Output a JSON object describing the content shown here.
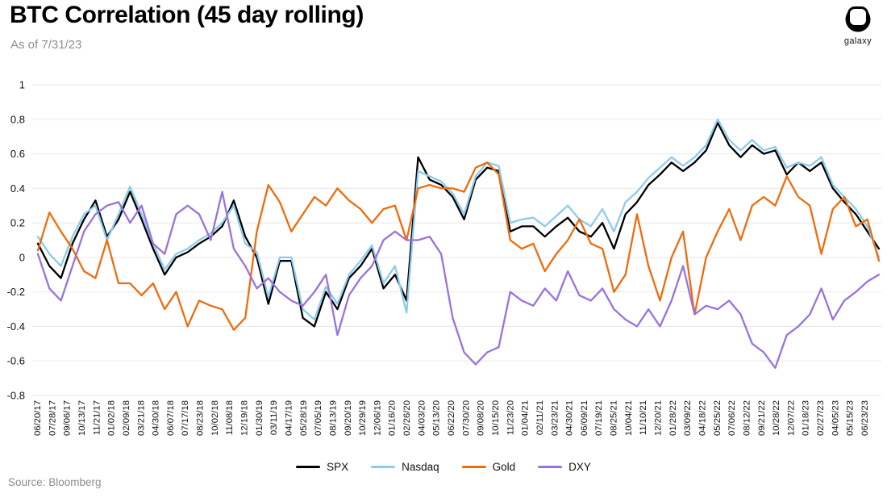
{
  "header": {
    "title": "BTC Correlation (45 day rolling)",
    "subtitle": "As of 7/31/23"
  },
  "branding": {
    "logo_text": "galaxy"
  },
  "footer": {
    "source": "Source: Bloomberg"
  },
  "chart_data": {
    "type": "line",
    "title": "BTC Correlation (45 day rolling)",
    "as_of": "7/31/23",
    "xlabel": "",
    "ylabel": "",
    "ylim": [
      -0.8,
      1
    ],
    "yticks": [
      1,
      0.8,
      0.6,
      0.4,
      0.2,
      0,
      -0.2,
      -0.4,
      -0.6,
      -0.8
    ],
    "ytick_labels": [
      "1",
      "0.8",
      "0.6",
      "0.4",
      "0.2",
      "0",
      "-0.2",
      "-0.4",
      "-0.6",
      "-0.8"
    ],
    "grid": "horizontal",
    "legend_position": "bottom",
    "grid_color": "#e7e7e7",
    "x_tick_labels": [
      "06/20/17",
      "07/28/17",
      "09/06/17",
      "10/13/17",
      "11/21/17",
      "01/02/18",
      "02/09/18",
      "03/21/18",
      "04/30/18",
      "06/07/18",
      "07/17/18",
      "08/23/18",
      "10/02/18",
      "11/08/18",
      "12/19/18",
      "01/30/19",
      "03/11/19",
      "04/17/19",
      "05/28/19",
      "07/05/19",
      "08/13/19",
      "09/20/19",
      "10/29/19",
      "12/06/19",
      "01/16/20",
      "02/26/20",
      "04/03/20",
      "05/13/20",
      "06/22/20",
      "07/30/20",
      "09/08/20",
      "10/15/20",
      "11/23/20",
      "01/04/21",
      "02/11/21",
      "03/23/21",
      "04/30/21",
      "06/09/21",
      "07/19/21",
      "08/25/21",
      "10/04/21",
      "11/10/21",
      "12/20/21",
      "01/28/22",
      "03/09/22",
      "04/18/22",
      "05/25/22",
      "07/06/22",
      "08/12/22",
      "09/21/22",
      "10/28/22",
      "12/07/22",
      "01/18/23",
      "02/27/23",
      "04/05/23",
      "05/15/23",
      "06/23/23"
    ],
    "x_sample_months": [
      "2017-06",
      "2017-07",
      "2017-08",
      "2017-09",
      "2017-10",
      "2017-11",
      "2017-12",
      "2018-01",
      "2018-02",
      "2018-03",
      "2018-04",
      "2018-05",
      "2018-06",
      "2018-07",
      "2018-08",
      "2018-09",
      "2018-10",
      "2018-11",
      "2018-12",
      "2019-01",
      "2019-02",
      "2019-03",
      "2019-04",
      "2019-05",
      "2019-06",
      "2019-07",
      "2019-08",
      "2019-09",
      "2019-10",
      "2019-11",
      "2019-12",
      "2020-01",
      "2020-02",
      "2020-03",
      "2020-04",
      "2020-05",
      "2020-06",
      "2020-07",
      "2020-08",
      "2020-09",
      "2020-10",
      "2020-11",
      "2020-12",
      "2021-01",
      "2021-02",
      "2021-03",
      "2021-04",
      "2021-05",
      "2021-06",
      "2021-07",
      "2021-08",
      "2021-09",
      "2021-10",
      "2021-11",
      "2021-12",
      "2022-01",
      "2022-02",
      "2022-03",
      "2022-04",
      "2022-05",
      "2022-06",
      "2022-07",
      "2022-08",
      "2022-09",
      "2022-10",
      "2022-11",
      "2022-12",
      "2023-01",
      "2023-02",
      "2023-03",
      "2023-04",
      "2023-05",
      "2023-06",
      "2023-07"
    ],
    "series": [
      {
        "name": "SPX",
        "color": "#000000",
        "values": [
          0.08,
          -0.05,
          -0.12,
          0.08,
          0.22,
          0.33,
          0.12,
          0.22,
          0.38,
          0.22,
          0.05,
          -0.1,
          0.0,
          0.03,
          0.08,
          0.12,
          0.18,
          0.33,
          0.12,
          0.0,
          -0.27,
          -0.02,
          -0.02,
          -0.35,
          -0.4,
          -0.2,
          -0.3,
          -0.12,
          -0.05,
          0.05,
          -0.18,
          -0.1,
          -0.25,
          0.58,
          0.45,
          0.42,
          0.35,
          0.22,
          0.45,
          0.52,
          0.5,
          0.15,
          0.18,
          0.18,
          0.12,
          0.18,
          0.23,
          0.15,
          0.12,
          0.2,
          0.05,
          0.25,
          0.32,
          0.42,
          0.48,
          0.55,
          0.5,
          0.55,
          0.62,
          0.78,
          0.65,
          0.58,
          0.65,
          0.6,
          0.62,
          0.48,
          0.55,
          0.5,
          0.55,
          0.4,
          0.32,
          0.25,
          0.15,
          0.05
        ]
      },
      {
        "name": "Nasdaq",
        "color": "#8dcbec",
        "values": [
          0.12,
          0.02,
          -0.05,
          0.12,
          0.25,
          0.3,
          0.1,
          0.25,
          0.41,
          0.25,
          0.08,
          -0.07,
          0.02,
          0.05,
          0.1,
          0.14,
          0.2,
          0.3,
          0.08,
          0.03,
          -0.23,
          0.0,
          0.0,
          -0.3,
          -0.36,
          -0.17,
          -0.27,
          -0.1,
          -0.02,
          0.07,
          -0.15,
          -0.05,
          -0.32,
          0.5,
          0.47,
          0.44,
          0.37,
          0.25,
          0.47,
          0.55,
          0.53,
          0.2,
          0.22,
          0.23,
          0.18,
          0.24,
          0.3,
          0.22,
          0.18,
          0.28,
          0.15,
          0.32,
          0.38,
          0.46,
          0.52,
          0.58,
          0.53,
          0.58,
          0.65,
          0.8,
          0.68,
          0.62,
          0.68,
          0.62,
          0.64,
          0.52,
          0.55,
          0.53,
          0.58,
          0.42,
          0.35,
          0.28,
          0.18,
          0.0
        ]
      },
      {
        "name": "Gold",
        "color": "#ed6c0d",
        "values": [
          0.04,
          0.26,
          0.15,
          0.05,
          -0.08,
          -0.12,
          0.1,
          -0.15,
          -0.15,
          -0.22,
          -0.15,
          -0.3,
          -0.2,
          -0.4,
          -0.25,
          -0.28,
          -0.3,
          -0.42,
          -0.35,
          0.15,
          0.42,
          0.32,
          0.15,
          0.25,
          0.35,
          0.3,
          0.4,
          0.33,
          0.28,
          0.2,
          0.28,
          0.3,
          0.1,
          0.4,
          0.42,
          0.4,
          0.4,
          0.38,
          0.52,
          0.55,
          0.48,
          0.1,
          0.05,
          0.08,
          -0.08,
          0.02,
          0.1,
          0.22,
          0.08,
          0.05,
          -0.2,
          -0.1,
          0.25,
          -0.05,
          -0.25,
          0.0,
          0.15,
          -0.33,
          0.0,
          0.15,
          0.28,
          0.1,
          0.3,
          0.35,
          0.3,
          0.47,
          0.35,
          0.3,
          0.02,
          0.28,
          0.35,
          0.18,
          0.22,
          -0.02
        ]
      },
      {
        "name": "DXY",
        "color": "#9a72dc",
        "values": [
          0.02,
          -0.18,
          -0.25,
          -0.05,
          0.15,
          0.25,
          0.3,
          0.32,
          0.2,
          0.3,
          0.08,
          0.02,
          0.25,
          0.3,
          0.25,
          0.1,
          0.38,
          0.05,
          -0.05,
          -0.18,
          -0.12,
          -0.2,
          -0.25,
          -0.28,
          -0.2,
          -0.1,
          -0.45,
          -0.22,
          -0.12,
          -0.05,
          0.1,
          0.15,
          0.1,
          0.1,
          0.12,
          0.02,
          -0.35,
          -0.55,
          -0.62,
          -0.55,
          -0.52,
          -0.2,
          -0.25,
          -0.28,
          -0.18,
          -0.25,
          -0.08,
          -0.22,
          -0.25,
          -0.18,
          -0.3,
          -0.36,
          -0.4,
          -0.3,
          -0.4,
          -0.25,
          -0.05,
          -0.33,
          -0.28,
          -0.3,
          -0.25,
          -0.33,
          -0.5,
          -0.55,
          -0.64,
          -0.45,
          -0.4,
          -0.33,
          -0.18,
          -0.36,
          -0.25,
          -0.2,
          -0.14,
          -0.1
        ]
      }
    ]
  }
}
